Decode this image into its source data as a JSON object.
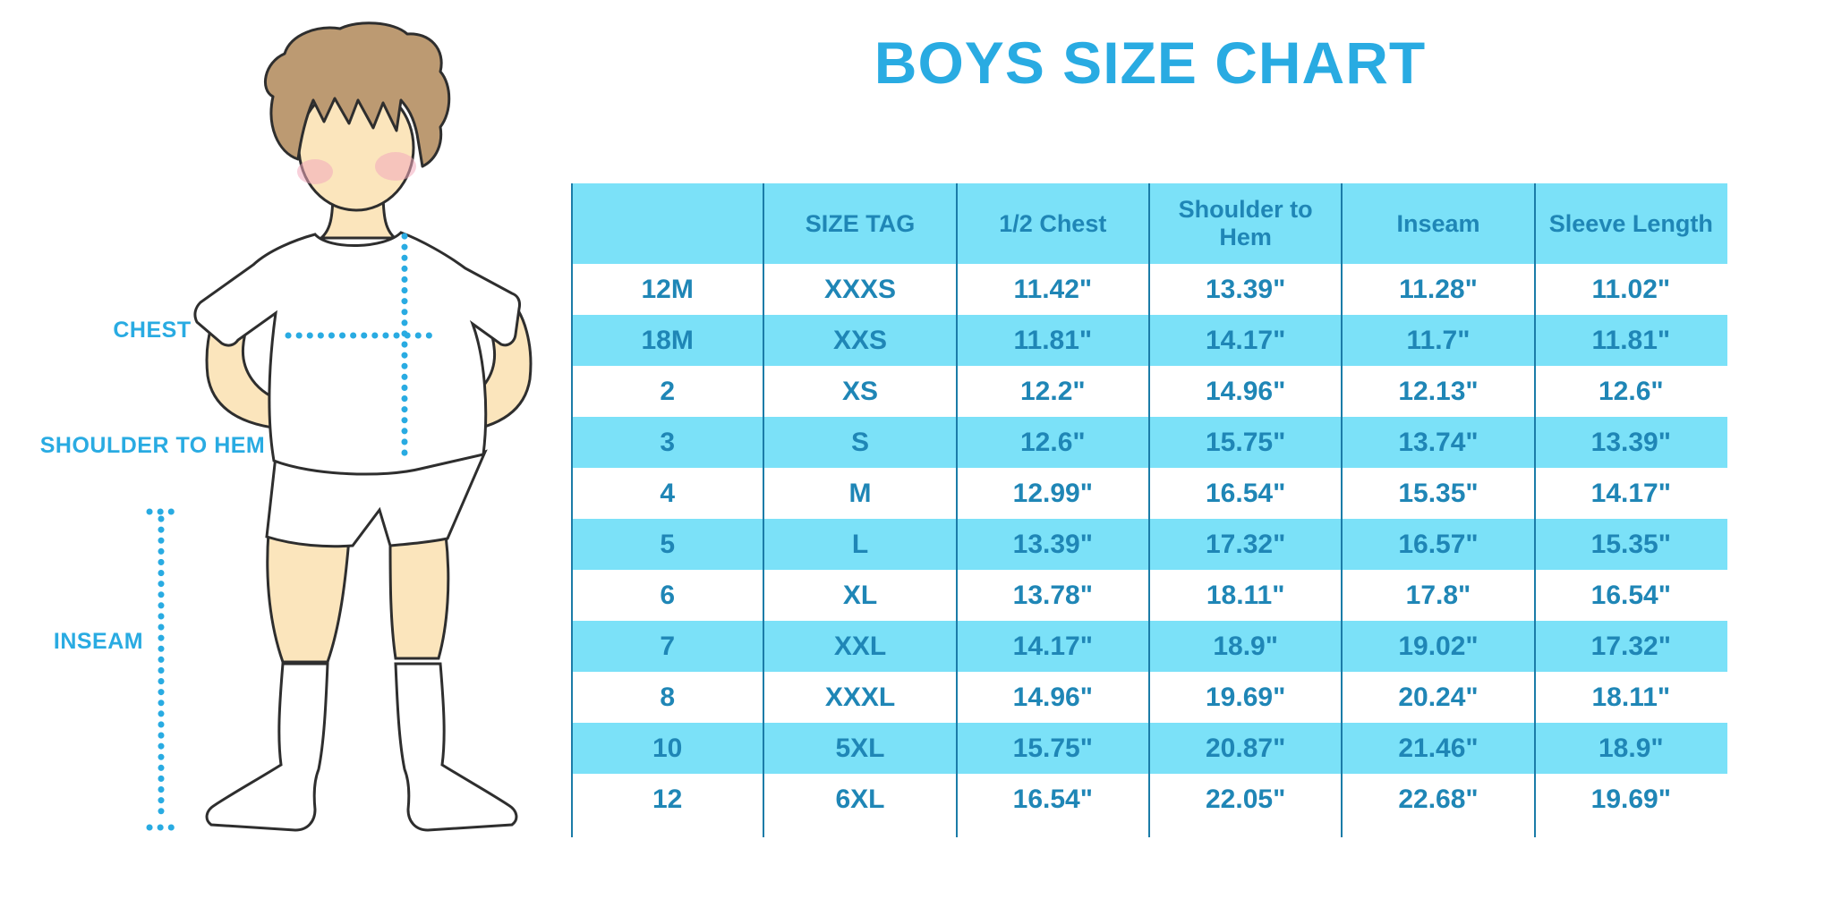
{
  "title": "BOYS SIZE CHART",
  "figure_labels": {
    "chest": "CHEST",
    "shoulder_to_hem": "SHOULDER TO HEM",
    "inseam": "INSEAM"
  },
  "colors": {
    "accent_cyan": "#29ABE2",
    "band_blue": "#7BE1F8",
    "table_text": "#1F86B6",
    "divider_line": "#1B7CA8",
    "skin": "#FBE5BC",
    "hair": "#BC9A72",
    "blush": "#F2A9BC"
  },
  "chart_data": {
    "type": "table",
    "title": "BOYS SIZE CHART",
    "columns": [
      "",
      "SIZE TAG",
      "1/2 Chest",
      "Shoulder to Hem",
      "Inseam",
      "Sleeve Length"
    ],
    "rows": [
      [
        "12M",
        "XXXS",
        "11.42\"",
        "13.39\"",
        "11.28\"",
        "11.02\""
      ],
      [
        "18M",
        "XXS",
        "11.81\"",
        "14.17\"",
        "11.7\"",
        "11.81\""
      ],
      [
        "2",
        "XS",
        "12.2\"",
        "14.96\"",
        "12.13\"",
        "12.6\""
      ],
      [
        "3",
        "S",
        "12.6\"",
        "15.75\"",
        "13.74\"",
        "13.39\""
      ],
      [
        "4",
        "M",
        "12.99\"",
        "16.54\"",
        "15.35\"",
        "14.17\""
      ],
      [
        "5",
        "L",
        "13.39\"",
        "17.32\"",
        "16.57\"",
        "15.35\""
      ],
      [
        "6",
        "XL",
        "13.78\"",
        "18.11\"",
        "17.8\"",
        "16.54\""
      ],
      [
        "7",
        "XXL",
        "14.17\"",
        "18.9\"",
        "19.02\"",
        "17.32\""
      ],
      [
        "8",
        "XXXL",
        "14.96\"",
        "19.69\"",
        "20.24\"",
        "18.11\""
      ],
      [
        "10",
        "5XL",
        "15.75\"",
        "20.87\"",
        "21.46\"",
        "18.9\""
      ],
      [
        "12",
        "6XL",
        "16.54\"",
        "22.05\"",
        "22.68\"",
        "19.69\""
      ]
    ],
    "striping": "rows alternate white and light blue starting with white",
    "grid": "vertical column dividers only, no horizontal borders",
    "legend_position": "none"
  }
}
